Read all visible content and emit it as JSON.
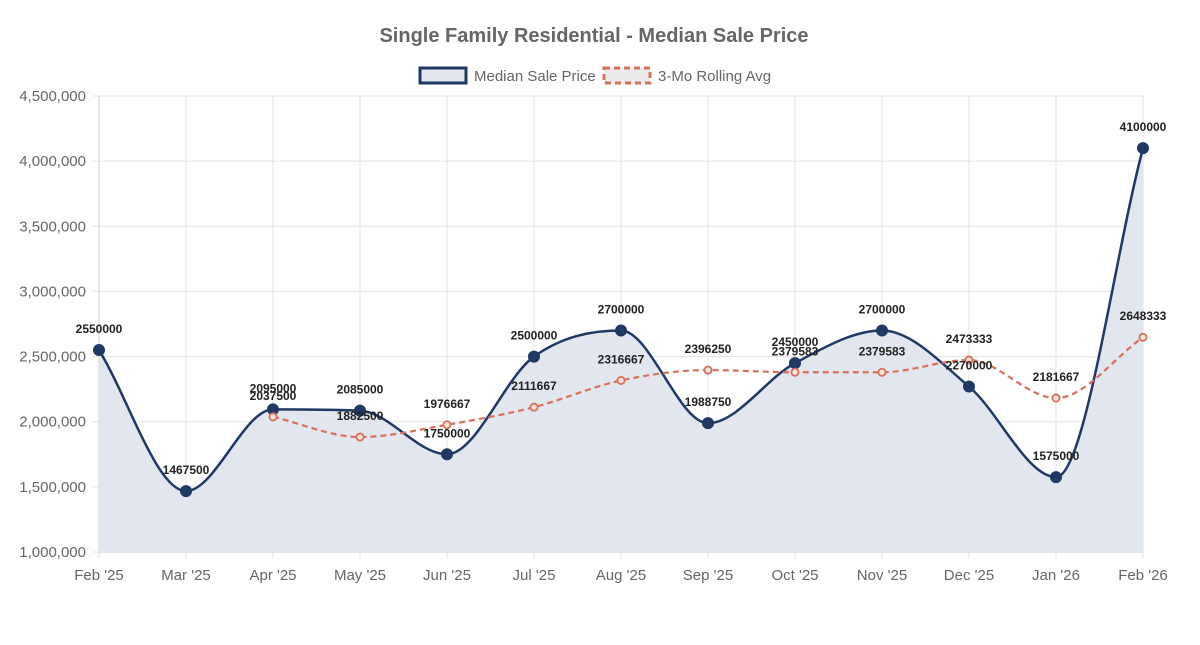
{
  "chart_data": {
    "type": "line",
    "title": "Single Family Residential - Median Sale Price",
    "categories": [
      "Feb '25",
      "Mar '25",
      "Apr '25",
      "May '25",
      "Jun '25",
      "Jul '25",
      "Aug '25",
      "Sep '25",
      "Oct '25",
      "Nov '25",
      "Dec '25",
      "Jan '26",
      "Feb '26"
    ],
    "ylim": [
      1000000,
      4500000
    ],
    "y_ticks": [
      1000000,
      1500000,
      2000000,
      2500000,
      3000000,
      3500000,
      4000000,
      4500000
    ],
    "y_tick_labels": [
      "1,000,000",
      "1,500,000",
      "2,000,000",
      "2,500,000",
      "3,000,000",
      "3,500,000",
      "4,000,000",
      "4,500,000"
    ],
    "grid": true,
    "legend_position": "top",
    "series": [
      {
        "name": "Median Sale Price",
        "values": [
          2550000,
          1467500,
          2095000,
          2085000,
          1750000,
          2500000,
          2700000,
          1988750,
          2450000,
          2700000,
          2270000,
          1575000,
          4100000
        ],
        "color": "#1f3864",
        "fill": "#e2e6ee",
        "style": "solid"
      },
      {
        "name": "3-Mo Rolling Avg",
        "values": [
          null,
          null,
          2037500,
          1882500,
          1976667,
          2111667,
          2316667,
          2396250,
          2379583,
          2379583,
          2473333,
          2181667,
          2648333
        ],
        "color": "#d9705b",
        "style": "dashed"
      }
    ]
  }
}
